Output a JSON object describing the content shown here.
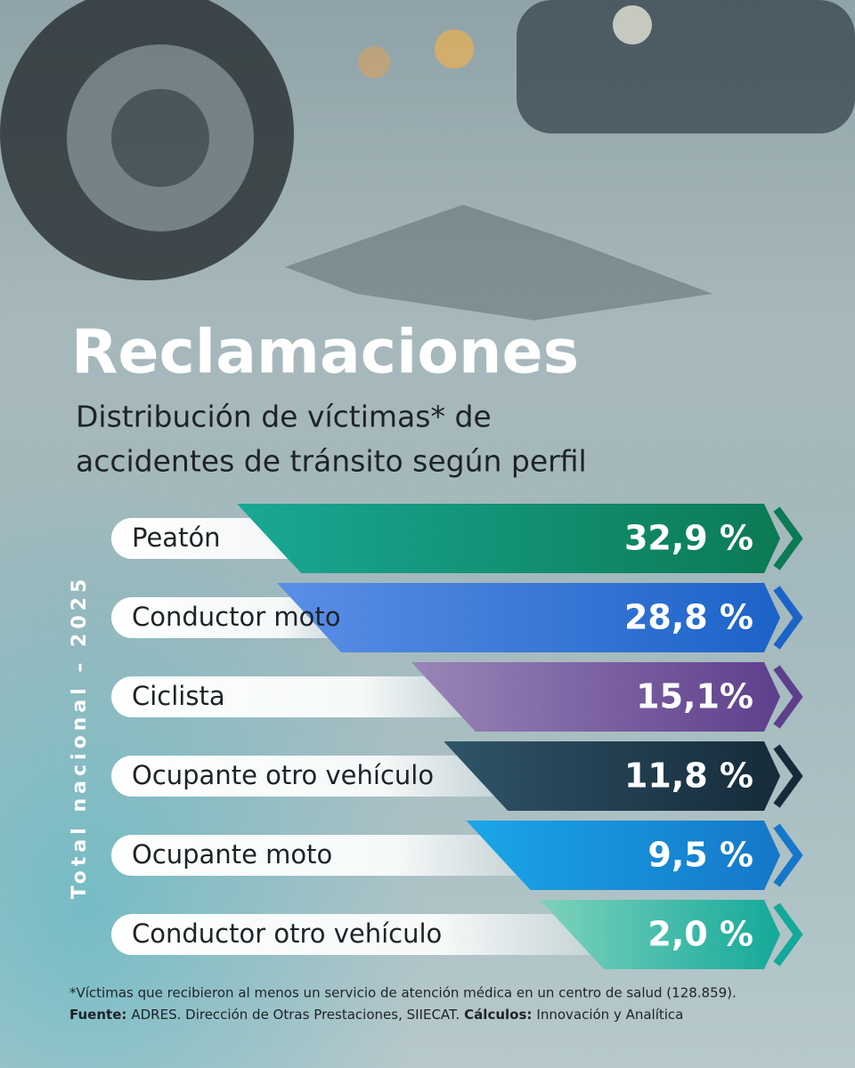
{
  "chart_data": {
    "type": "bar",
    "orientation": "horizontal",
    "title": "Reclamaciones",
    "subtitle": [
      "Distribución de víctimas* de",
      "accidentes de tránsito según perfil"
    ],
    "side_label": "Total nacional – 2025",
    "categories": [
      "Peatón",
      "Conductor moto",
      "Ciclista",
      "Ocupante otro vehículo",
      "Ocupante moto",
      "Conductor otro vehículo"
    ],
    "values": [
      32.9,
      28.8,
      15.1,
      11.8,
      9.5,
      2.0
    ],
    "value_labels": [
      "32,9 %",
      "28,8 %",
      "15,1%",
      "11,8 %",
      "9,5 %",
      "2,0 %"
    ],
    "colors": [
      [
        "#1aa894",
        "#0b7a55"
      ],
      [
        "#5a8fe6",
        "#1c63c8"
      ],
      [
        "#9a86b8",
        "#5e3f8c"
      ],
      [
        "#2f5568",
        "#162b3a"
      ],
      [
        "#1aa6e8",
        "#1577c9"
      ],
      [
        "#7fd2bd",
        "#14a99a"
      ]
    ],
    "footnote": "*Víctimas que recibieron al menos un servicio de atención médica en un centro de salud (128.859).",
    "source_label": "Fuente:",
    "source": "ADRES. Dirección de Otras Prestaciones, SIIECAT.",
    "calc_label": "Cálculos:",
    "calc": "Innovación y Analítica"
  }
}
